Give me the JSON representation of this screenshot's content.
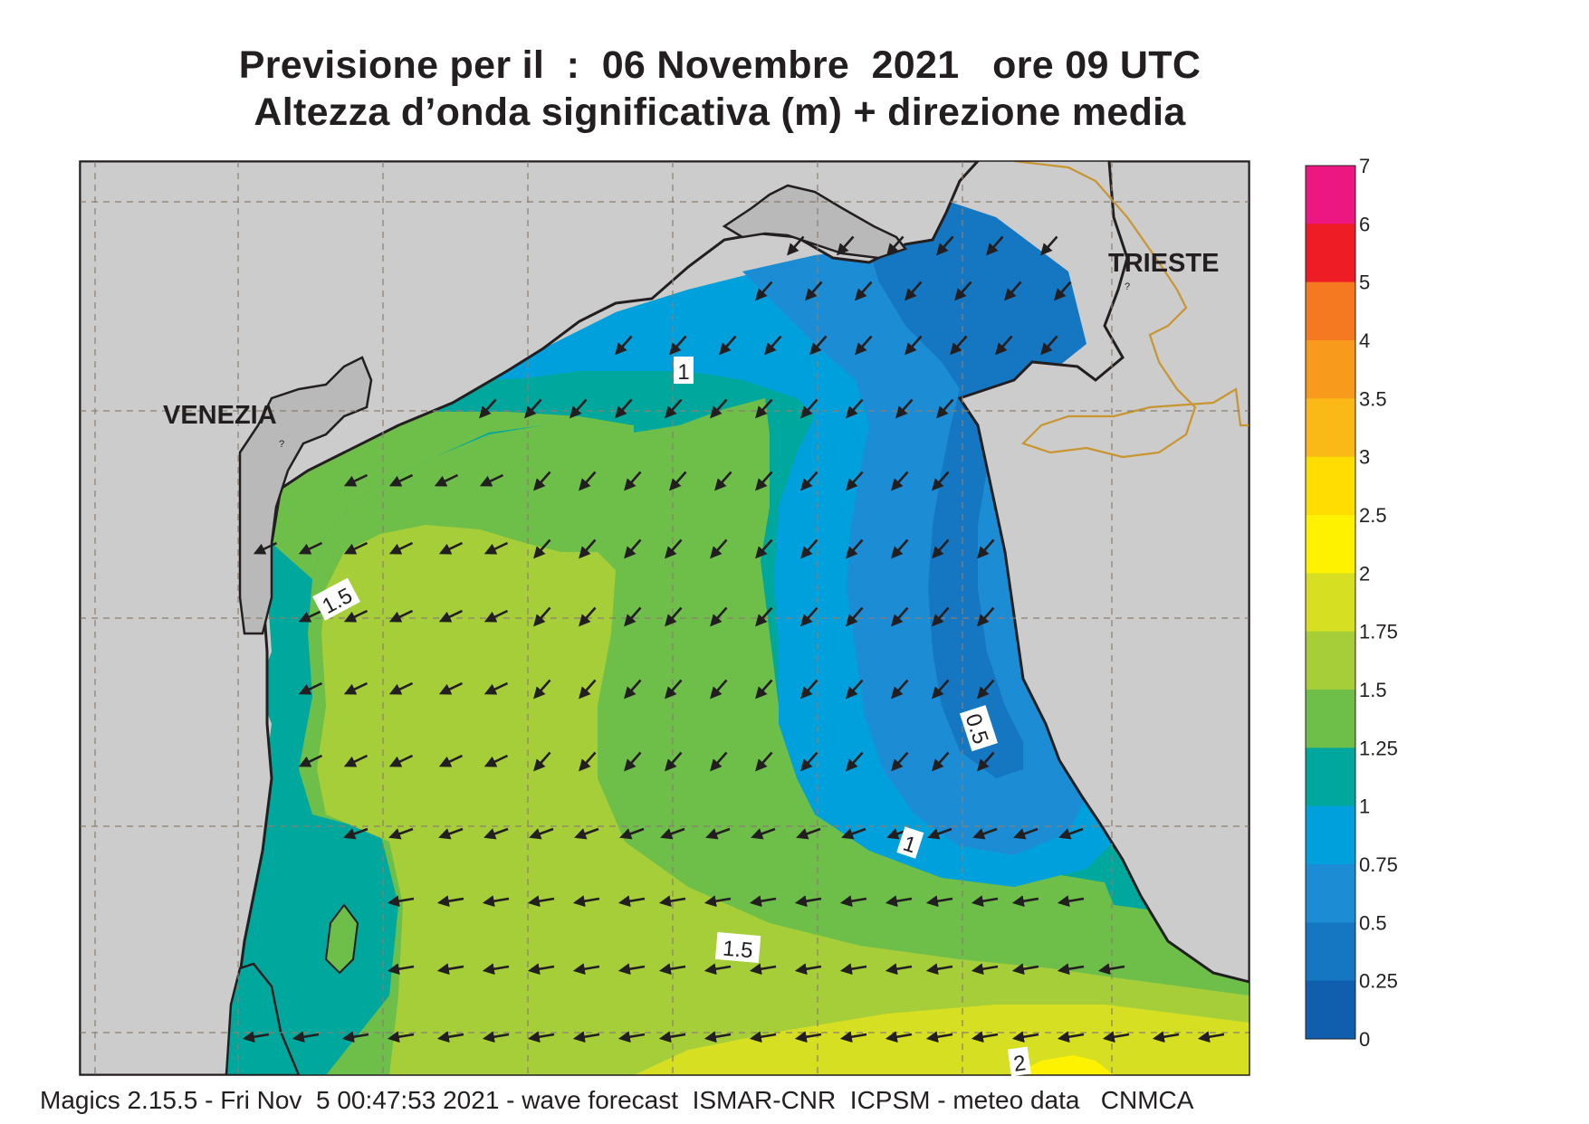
{
  "title": {
    "line1": "Previsione per il  :  06 Novembre  2021   ore 09 UTC",
    "line2": "Altezza d’onda significativa (m) + direzione media"
  },
  "map": {
    "places": [
      {
        "name": "VENEZIA",
        "marker": "?"
      },
      {
        "name": "TRIESTE",
        "marker": "?"
      }
    ],
    "contour_labels": [
      "1",
      "1.5",
      "0.5",
      "1",
      "1.5",
      "2"
    ],
    "arrow_direction": "south-west",
    "land_color": "#cccccc",
    "border_color": "#c8952f"
  },
  "colorbar": {
    "ticks": [
      "7",
      "6",
      "5",
      "4",
      "3.5",
      "3",
      "2.5",
      "2",
      "1.75",
      "1.5",
      "1.25",
      "1",
      "0.75",
      "0.5",
      "0.25",
      "0"
    ],
    "colors": [
      "#ed1782",
      "#ee1c25",
      "#f47920",
      "#f89b1c",
      "#fbb917",
      "#ffdd00",
      "#fff200",
      "#d7df23",
      "#a6ce39",
      "#6ebe4a",
      "#00a79d",
      "#00a0dc",
      "#1c8dd5",
      "#1577c2",
      "#0f5fae"
    ]
  },
  "footer": "Magics 2.15.5 - Fri Nov  5 00:47:53 2021 - wave forecast  ISMAR-CNR  ICPSM - meteo data   CNMCA"
}
